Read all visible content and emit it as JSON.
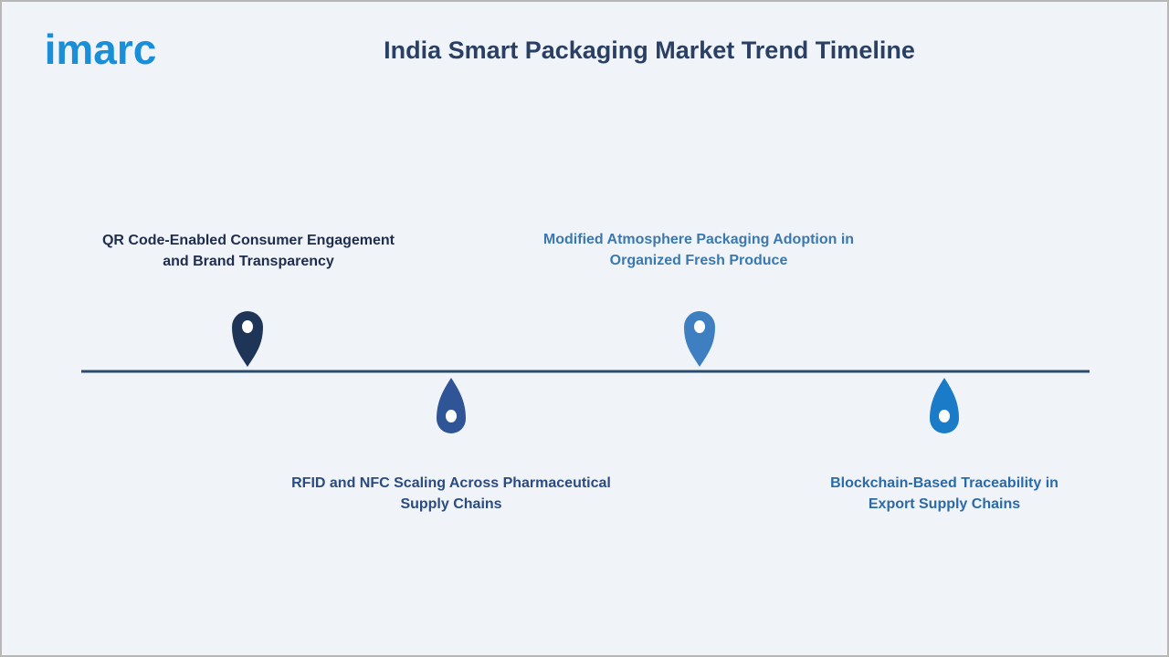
{
  "logo": "imarc",
  "title": "India Smart Packaging Market Trend Timeline",
  "items": [
    {
      "lines": [
        "QR Code-Enabled Consumer Engagement",
        "and Brand Transparency"
      ]
    },
    {
      "lines": [
        "RFID and NFC Scaling Across Pharmaceutical",
        "Supply Chains"
      ]
    },
    {
      "lines": [
        "Modified Atmosphere Packaging Adoption in",
        "Organized Fresh Produce"
      ]
    },
    {
      "lines": [
        "Blockchain-Based Traceability in",
        "Export Supply Chains"
      ]
    }
  ]
}
